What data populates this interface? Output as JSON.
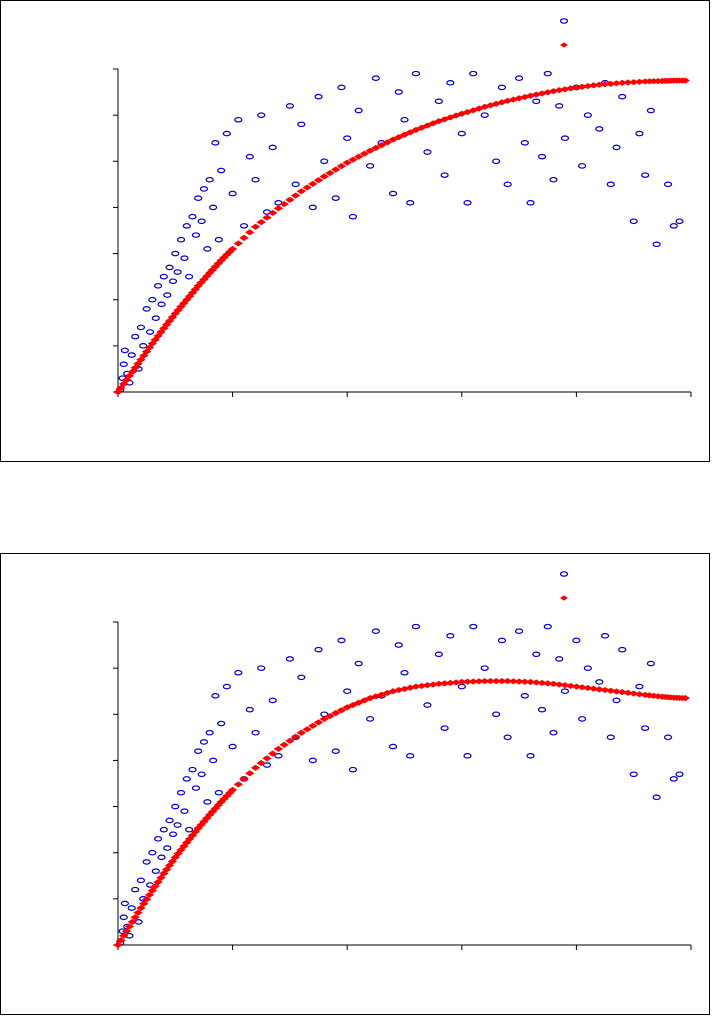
{
  "chart_data": [
    {
      "type": "scatter",
      "title": "",
      "xlabel": "",
      "ylabel": "",
      "xlim": [
        0,
        5
      ],
      "ylim": [
        0,
        7
      ],
      "grid": false,
      "legend_position": "top-right",
      "series": [
        {
          "color": "#0000cc",
          "marker": "open-ellipse",
          "points": [
            [
              0.02,
              0.05
            ],
            [
              0.04,
              0.3
            ],
            [
              0.05,
              0.6
            ],
            [
              0.06,
              0.9
            ],
            [
              0.08,
              0.4
            ],
            [
              0.1,
              0.2
            ],
            [
              0.12,
              0.8
            ],
            [
              0.15,
              1.2
            ],
            [
              0.18,
              0.5
            ],
            [
              0.2,
              1.4
            ],
            [
              0.22,
              1.0
            ],
            [
              0.25,
              1.8
            ],
            [
              0.28,
              1.3
            ],
            [
              0.3,
              2.0
            ],
            [
              0.33,
              1.6
            ],
            [
              0.35,
              2.3
            ],
            [
              0.38,
              1.9
            ],
            [
              0.4,
              2.5
            ],
            [
              0.43,
              2.1
            ],
            [
              0.45,
              2.7
            ],
            [
              0.48,
              2.4
            ],
            [
              0.5,
              3.0
            ],
            [
              0.52,
              2.6
            ],
            [
              0.55,
              3.3
            ],
            [
              0.58,
              2.9
            ],
            [
              0.6,
              3.6
            ],
            [
              0.62,
              2.5
            ],
            [
              0.65,
              3.8
            ],
            [
              0.68,
              3.4
            ],
            [
              0.7,
              4.2
            ],
            [
              0.73,
              3.7
            ],
            [
              0.75,
              4.4
            ],
            [
              0.78,
              3.1
            ],
            [
              0.8,
              4.6
            ],
            [
              0.83,
              4.0
            ],
            [
              0.85,
              5.4
            ],
            [
              0.88,
              3.3
            ],
            [
              0.9,
              4.8
            ],
            [
              0.95,
              5.6
            ],
            [
              1.0,
              4.3
            ],
            [
              1.05,
              5.9
            ],
            [
              1.1,
              3.6
            ],
            [
              1.15,
              5.1
            ],
            [
              1.2,
              4.6
            ],
            [
              1.25,
              6.0
            ],
            [
              1.3,
              3.9
            ],
            [
              1.35,
              5.3
            ],
            [
              1.4,
              4.1
            ],
            [
              1.5,
              6.2
            ],
            [
              1.55,
              4.5
            ],
            [
              1.6,
              5.8
            ],
            [
              1.7,
              4.0
            ],
            [
              1.75,
              6.4
            ],
            [
              1.8,
              5.0
            ],
            [
              1.9,
              4.2
            ],
            [
              1.95,
              6.6
            ],
            [
              2.0,
              5.5
            ],
            [
              2.05,
              3.8
            ],
            [
              2.1,
              6.1
            ],
            [
              2.2,
              4.9
            ],
            [
              2.25,
              6.8
            ],
            [
              2.3,
              5.4
            ],
            [
              2.4,
              4.3
            ],
            [
              2.45,
              6.5
            ],
            [
              2.5,
              5.9
            ],
            [
              2.55,
              4.1
            ],
            [
              2.6,
              6.9
            ],
            [
              2.7,
              5.2
            ],
            [
              2.8,
              6.3
            ],
            [
              2.85,
              4.7
            ],
            [
              2.9,
              6.7
            ],
            [
              3.0,
              5.6
            ],
            [
              3.05,
              4.1
            ],
            [
              3.1,
              6.9
            ],
            [
              3.2,
              6.0
            ],
            [
              3.3,
              5.0
            ],
            [
              3.35,
              6.6
            ],
            [
              3.4,
              4.5
            ],
            [
              3.5,
              6.8
            ],
            [
              3.55,
              5.4
            ],
            [
              3.6,
              4.1
            ],
            [
              3.65,
              6.3
            ],
            [
              3.7,
              5.1
            ],
            [
              3.75,
              6.9
            ],
            [
              3.8,
              4.6
            ],
            [
              3.85,
              6.2
            ],
            [
              3.9,
              5.5
            ],
            [
              4.0,
              6.6
            ],
            [
              4.05,
              4.9
            ],
            [
              4.1,
              6.0
            ],
            [
              4.2,
              5.7
            ],
            [
              4.25,
              6.7
            ],
            [
              4.3,
              4.5
            ],
            [
              4.35,
              5.3
            ],
            [
              4.4,
              6.4
            ],
            [
              4.5,
              3.7
            ],
            [
              4.55,
              5.6
            ],
            [
              4.6,
              4.7
            ],
            [
              4.65,
              6.1
            ],
            [
              4.7,
              3.2
            ],
            [
              4.8,
              4.5
            ],
            [
              4.85,
              3.6
            ],
            [
              4.9,
              3.7
            ]
          ]
        },
        {
          "color": "#ff0000",
          "marker": "filled-diamond",
          "points": [
            [
              0.0,
              0.0
            ],
            [
              0.1,
              0.35
            ],
            [
              0.2,
              0.7
            ],
            [
              0.3,
              1.05
            ],
            [
              0.4,
              1.38
            ],
            [
              0.5,
              1.7
            ],
            [
              0.6,
              2.0
            ],
            [
              0.7,
              2.3
            ],
            [
              0.8,
              2.58
            ],
            [
              0.9,
              2.85
            ],
            [
              1.0,
              3.1
            ],
            [
              1.2,
              3.58
            ],
            [
              1.4,
              3.98
            ],
            [
              1.6,
              4.35
            ],
            [
              1.8,
              4.67
            ],
            [
              2.0,
              4.97
            ],
            [
              2.2,
              5.23
            ],
            [
              2.4,
              5.47
            ],
            [
              2.6,
              5.68
            ],
            [
              2.8,
              5.87
            ],
            [
              3.0,
              6.03
            ],
            [
              3.2,
              6.18
            ],
            [
              3.4,
              6.31
            ],
            [
              3.6,
              6.42
            ],
            [
              3.8,
              6.52
            ],
            [
              4.0,
              6.6
            ],
            [
              4.2,
              6.66
            ],
            [
              4.4,
              6.7
            ],
            [
              4.6,
              6.73
            ],
            [
              4.75,
              6.74
            ],
            [
              4.85,
              6.75
            ],
            [
              4.95,
              6.75
            ]
          ]
        }
      ]
    },
    {
      "type": "scatter",
      "title": "",
      "xlabel": "",
      "ylabel": "",
      "xlim": [
        0,
        5
      ],
      "ylim": [
        0,
        7
      ],
      "grid": false,
      "legend_position": "top-right",
      "series": [
        {
          "color": "#0000cc",
          "marker": "open-ellipse",
          "points": [
            [
              0.02,
              0.05
            ],
            [
              0.04,
              0.3
            ],
            [
              0.05,
              0.6
            ],
            [
              0.06,
              0.9
            ],
            [
              0.08,
              0.4
            ],
            [
              0.1,
              0.2
            ],
            [
              0.12,
              0.8
            ],
            [
              0.15,
              1.2
            ],
            [
              0.18,
              0.5
            ],
            [
              0.2,
              1.4
            ],
            [
              0.22,
              1.0
            ],
            [
              0.25,
              1.8
            ],
            [
              0.28,
              1.3
            ],
            [
              0.3,
              2.0
            ],
            [
              0.33,
              1.6
            ],
            [
              0.35,
              2.3
            ],
            [
              0.38,
              1.9
            ],
            [
              0.4,
              2.5
            ],
            [
              0.43,
              2.1
            ],
            [
              0.45,
              2.7
            ],
            [
              0.48,
              2.4
            ],
            [
              0.5,
              3.0
            ],
            [
              0.52,
              2.6
            ],
            [
              0.55,
              3.3
            ],
            [
              0.58,
              2.9
            ],
            [
              0.6,
              3.6
            ],
            [
              0.62,
              2.5
            ],
            [
              0.65,
              3.8
            ],
            [
              0.68,
              3.4
            ],
            [
              0.7,
              4.2
            ],
            [
              0.73,
              3.7
            ],
            [
              0.75,
              4.4
            ],
            [
              0.78,
              3.1
            ],
            [
              0.8,
              4.6
            ],
            [
              0.83,
              4.0
            ],
            [
              0.85,
              5.4
            ],
            [
              0.88,
              3.3
            ],
            [
              0.9,
              4.8
            ],
            [
              0.95,
              5.6
            ],
            [
              1.0,
              4.3
            ],
            [
              1.05,
              5.9
            ],
            [
              1.1,
              3.6
            ],
            [
              1.15,
              5.1
            ],
            [
              1.2,
              4.6
            ],
            [
              1.25,
              6.0
            ],
            [
              1.3,
              3.9
            ],
            [
              1.35,
              5.3
            ],
            [
              1.4,
              4.1
            ],
            [
              1.5,
              6.2
            ],
            [
              1.55,
              4.5
            ],
            [
              1.6,
              5.8
            ],
            [
              1.7,
              4.0
            ],
            [
              1.75,
              6.4
            ],
            [
              1.8,
              5.0
            ],
            [
              1.9,
              4.2
            ],
            [
              1.95,
              6.6
            ],
            [
              2.0,
              5.5
            ],
            [
              2.05,
              3.8
            ],
            [
              2.1,
              6.1
            ],
            [
              2.2,
              4.9
            ],
            [
              2.25,
              6.8
            ],
            [
              2.3,
              5.4
            ],
            [
              2.4,
              4.3
            ],
            [
              2.45,
              6.5
            ],
            [
              2.5,
              5.9
            ],
            [
              2.55,
              4.1
            ],
            [
              2.6,
              6.9
            ],
            [
              2.7,
              5.2
            ],
            [
              2.8,
              6.3
            ],
            [
              2.85,
              4.7
            ],
            [
              2.9,
              6.7
            ],
            [
              3.0,
              5.6
            ],
            [
              3.05,
              4.1
            ],
            [
              3.1,
              6.9
            ],
            [
              3.2,
              6.0
            ],
            [
              3.3,
              5.0
            ],
            [
              3.35,
              6.6
            ],
            [
              3.4,
              4.5
            ],
            [
              3.5,
              6.8
            ],
            [
              3.55,
              5.4
            ],
            [
              3.6,
              4.1
            ],
            [
              3.65,
              6.3
            ],
            [
              3.7,
              5.1
            ],
            [
              3.75,
              6.9
            ],
            [
              3.8,
              4.6
            ],
            [
              3.85,
              6.2
            ],
            [
              3.9,
              5.5
            ],
            [
              4.0,
              6.6
            ],
            [
              4.05,
              4.9
            ],
            [
              4.1,
              6.0
            ],
            [
              4.2,
              5.7
            ],
            [
              4.25,
              6.7
            ],
            [
              4.3,
              4.5
            ],
            [
              4.35,
              5.3
            ],
            [
              4.4,
              6.4
            ],
            [
              4.5,
              3.7
            ],
            [
              4.55,
              5.6
            ],
            [
              4.6,
              4.7
            ],
            [
              4.65,
              6.1
            ],
            [
              4.7,
              3.2
            ],
            [
              4.8,
              4.5
            ],
            [
              4.85,
              3.6
            ],
            [
              4.9,
              3.7
            ]
          ]
        },
        {
          "color": "#ff0000",
          "marker": "filled-diamond",
          "points": [
            [
              0.0,
              0.0
            ],
            [
              0.1,
              0.4
            ],
            [
              0.2,
              0.8
            ],
            [
              0.3,
              1.18
            ],
            [
              0.4,
              1.55
            ],
            [
              0.5,
              1.9
            ],
            [
              0.6,
              2.22
            ],
            [
              0.7,
              2.53
            ],
            [
              0.8,
              2.82
            ],
            [
              0.9,
              3.1
            ],
            [
              1.0,
              3.36
            ],
            [
              1.2,
              3.84
            ],
            [
              1.4,
              4.25
            ],
            [
              1.6,
              4.6
            ],
            [
              1.8,
              4.9
            ],
            [
              2.0,
              5.15
            ],
            [
              2.2,
              5.35
            ],
            [
              2.4,
              5.5
            ],
            [
              2.6,
              5.6
            ],
            [
              2.8,
              5.66
            ],
            [
              3.0,
              5.7
            ],
            [
              3.2,
              5.72
            ],
            [
              3.4,
              5.72
            ],
            [
              3.6,
              5.7
            ],
            [
              3.8,
              5.66
            ],
            [
              4.0,
              5.6
            ],
            [
              4.2,
              5.54
            ],
            [
              4.4,
              5.48
            ],
            [
              4.6,
              5.42
            ],
            [
              4.75,
              5.38
            ],
            [
              4.85,
              5.36
            ],
            [
              4.95,
              5.35
            ]
          ]
        }
      ]
    }
  ]
}
